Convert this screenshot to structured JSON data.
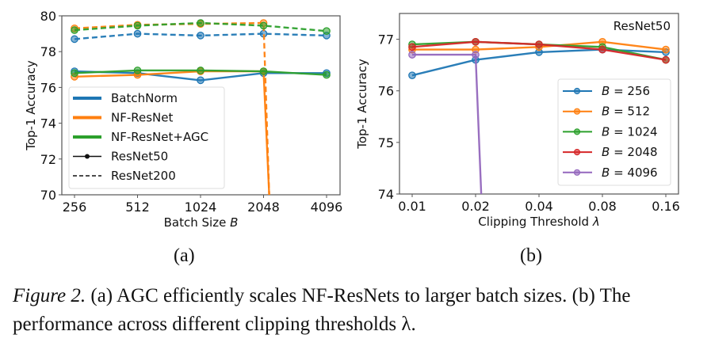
{
  "chart_data": [
    {
      "type": "line",
      "panel": "(a)",
      "title": "",
      "xlabel": "Batch Size B",
      "ylabel": "Top-1 Accuracy",
      "categories": [
        "256",
        "512",
        "1024",
        "2048",
        "4096"
      ],
      "ylim": [
        70,
        80
      ],
      "yticks": [
        "70",
        "72",
        "74",
        "76",
        "78",
        "80"
      ],
      "grid": false,
      "legend_position": "lower-left",
      "legend": [
        {
          "label": "BatchNorm",
          "kind": "color",
          "color": "#1f77b4"
        },
        {
          "label": "NF-ResNet",
          "kind": "color",
          "color": "#ff7f0e"
        },
        {
          "label": "NF-ResNet+AGC",
          "kind": "color",
          "color": "#2ca02c"
        },
        {
          "label": "ResNet50",
          "kind": "solid-marker",
          "color": "#111111"
        },
        {
          "label": "ResNet200",
          "kind": "dashed",
          "color": "#111111"
        }
      ],
      "series": [
        {
          "name": "BatchNorm ResNet200",
          "color": "#1f77b4",
          "dashed": true,
          "values": [
            78.7,
            79.0,
            78.9,
            79.0,
            78.9
          ]
        },
        {
          "name": "NF-ResNet ResNet200",
          "color": "#ff7f0e",
          "dashed": true,
          "values": [
            79.3,
            79.5,
            79.55,
            79.6,
            null
          ],
          "diverged_after": 3
        },
        {
          "name": "NF-ResNet+AGC ResNet200",
          "color": "#2ca02c",
          "dashed": true,
          "values": [
            79.2,
            79.45,
            79.6,
            79.45,
            79.15
          ]
        },
        {
          "name": "BatchNorm ResNet50",
          "color": "#1f77b4",
          "dashed": false,
          "values": [
            76.9,
            76.8,
            76.4,
            76.8,
            76.8
          ]
        },
        {
          "name": "NF-ResNet ResNet50",
          "color": "#ff7f0e",
          "dashed": false,
          "values": [
            76.6,
            76.7,
            76.9,
            76.9,
            null
          ],
          "diverged_after": 3
        },
        {
          "name": "NF-ResNet+AGC ResNet50",
          "color": "#2ca02c",
          "dashed": false,
          "values": [
            76.8,
            76.95,
            76.95,
            76.9,
            76.7
          ]
        }
      ]
    },
    {
      "type": "line",
      "panel": "(b)",
      "title": "",
      "annotation": "ResNet50",
      "xlabel": "Clipping Threshold λ",
      "ylabel": "Top-1 Accuracy",
      "categories": [
        "0.01",
        "0.02",
        "0.04",
        "0.08",
        "0.16"
      ],
      "ylim": [
        74,
        77.5
      ],
      "yticks": [
        "74",
        "75",
        "76",
        "77"
      ],
      "grid": false,
      "legend_position": "lower-right",
      "legend": [
        {
          "label": "B = 256",
          "color": "#1f77b4"
        },
        {
          "label": "B = 512",
          "color": "#ff7f0e"
        },
        {
          "label": "B = 1024",
          "color": "#2ca02c"
        },
        {
          "label": "B = 2048",
          "color": "#d62728"
        },
        {
          "label": "B = 4096",
          "color": "#9467bd"
        }
      ],
      "series": [
        {
          "name": "B = 256",
          "color": "#1f77b4",
          "values": [
            76.3,
            76.6,
            76.75,
            76.8,
            76.75
          ]
        },
        {
          "name": "B = 512",
          "color": "#ff7f0e",
          "values": [
            76.8,
            76.8,
            76.85,
            76.95,
            76.8
          ]
        },
        {
          "name": "B = 1024",
          "color": "#2ca02c",
          "values": [
            76.9,
            76.95,
            76.9,
            76.85,
            76.6
          ]
        },
        {
          "name": "B = 2048",
          "color": "#d62728",
          "values": [
            76.85,
            76.95,
            76.9,
            76.8,
            76.6
          ]
        },
        {
          "name": "B = 4096",
          "color": "#9467bd",
          "values": [
            76.7,
            76.7,
            null,
            null,
            null
          ],
          "diverged_after": 1
        }
      ]
    }
  ],
  "sublabels": {
    "a": "(a)",
    "b": "(b)"
  },
  "caption": {
    "figure_label": "Figure 2.",
    "text": " (a) AGC efficiently scales NF-ResNets to larger batch sizes. (b) The performance across different clipping thresholds λ."
  }
}
